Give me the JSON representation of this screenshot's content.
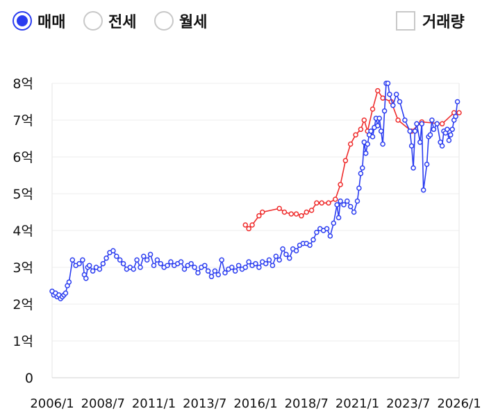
{
  "controls": {
    "radios": [
      {
        "label": "매매",
        "selected": true
      },
      {
        "label": "전세",
        "selected": false
      },
      {
        "label": "월세",
        "selected": false
      }
    ],
    "volume_checkbox": {
      "label": "거래량",
      "checked": false
    }
  },
  "chart_data": {
    "type": "line",
    "title": "",
    "xlabel": "",
    "ylabel": "",
    "ylim": [
      0,
      8
    ],
    "xlim": [
      "2006/1",
      "2026/1"
    ],
    "grid": true,
    "x_ticks": [
      "2006/1",
      "2008/7",
      "2011/1",
      "2013/7",
      "2016/1",
      "2018/7",
      "2021/1",
      "2023/7",
      "2026/1"
    ],
    "y_ticks": [
      {
        "value": 0,
        "label": "0"
      },
      {
        "value": 1,
        "label": "1억"
      },
      {
        "value": 2,
        "label": "2억"
      },
      {
        "value": 3,
        "label": "3억"
      },
      {
        "value": 4,
        "label": "4억"
      },
      {
        "value": 5,
        "label": "5억"
      },
      {
        "value": 6,
        "label": "6억"
      },
      {
        "value": 7,
        "label": "7억"
      },
      {
        "value": 8,
        "label": "8억"
      }
    ],
    "series": [
      {
        "color": "#ef2b2b",
        "points": [
          [
            "2015/7",
            4.15
          ],
          [
            "2015/9",
            4.05
          ],
          [
            "2015/11",
            4.15
          ],
          [
            "2016/3",
            4.4
          ],
          [
            "2016/5",
            4.5
          ],
          [
            "2017/3",
            4.6
          ],
          [
            "2017/6",
            4.5
          ],
          [
            "2017/10",
            4.45
          ],
          [
            "2018/1",
            4.45
          ],
          [
            "2018/4",
            4.4
          ],
          [
            "2018/7",
            4.5
          ],
          [
            "2018/10",
            4.55
          ],
          [
            "2019/1",
            4.75
          ],
          [
            "2019/4",
            4.75
          ],
          [
            "2019/8",
            4.75
          ],
          [
            "2019/12",
            4.85
          ],
          [
            "2020/3",
            5.25
          ],
          [
            "2020/6",
            5.9
          ],
          [
            "2020/9",
            6.35
          ],
          [
            "2020/12",
            6.6
          ],
          [
            "2021/3",
            6.75
          ],
          [
            "2021/5",
            7.0
          ],
          [
            "2021/7",
            6.7
          ],
          [
            "2021/10",
            7.3
          ],
          [
            "2022/1",
            7.8
          ],
          [
            "2022/4",
            7.6
          ],
          [
            "2022/9",
            7.5
          ],
          [
            "2023/1",
            7.0
          ],
          [
            "2023/9",
            6.7
          ],
          [
            "2024/3",
            6.95
          ],
          [
            "2025/3",
            6.9
          ],
          [
            "2025/10",
            7.2
          ],
          [
            "2026/1",
            7.2
          ]
        ]
      },
      {
        "color": "#2a3cf0",
        "points": [
          [
            "2006/1",
            2.35
          ],
          [
            "2006/2",
            2.25
          ],
          [
            "2006/3",
            2.3
          ],
          [
            "2006/4",
            2.2
          ],
          [
            "2006/5",
            2.25
          ],
          [
            "2006/6",
            2.15
          ],
          [
            "2006/7",
            2.2
          ],
          [
            "2006/8",
            2.25
          ],
          [
            "2006/9",
            2.3
          ],
          [
            "2006/10",
            2.5
          ],
          [
            "2006/11",
            2.6
          ],
          [
            "2007/1",
            3.2
          ],
          [
            "2007/3",
            3.05
          ],
          [
            "2007/5",
            3.1
          ],
          [
            "2007/7",
            3.2
          ],
          [
            "2007/8",
            2.8
          ],
          [
            "2007/9",
            2.7
          ],
          [
            "2007/10",
            3.0
          ],
          [
            "2007/11",
            3.05
          ],
          [
            "2008/1",
            2.9
          ],
          [
            "2008/3",
            3.0
          ],
          [
            "2008/5",
            2.95
          ],
          [
            "2008/7",
            3.1
          ],
          [
            "2008/9",
            3.25
          ],
          [
            "2008/11",
            3.4
          ],
          [
            "2009/1",
            3.45
          ],
          [
            "2009/3",
            3.3
          ],
          [
            "2009/5",
            3.2
          ],
          [
            "2009/7",
            3.1
          ],
          [
            "2009/9",
            2.95
          ],
          [
            "2009/11",
            3.0
          ],
          [
            "2010/1",
            2.95
          ],
          [
            "2010/3",
            3.2
          ],
          [
            "2010/5",
            3.0
          ],
          [
            "2010/7",
            3.3
          ],
          [
            "2010/9",
            3.2
          ],
          [
            "2010/11",
            3.35
          ],
          [
            "2011/1",
            3.05
          ],
          [
            "2011/3",
            3.2
          ],
          [
            "2011/5",
            3.1
          ],
          [
            "2011/7",
            3.0
          ],
          [
            "2011/9",
            3.05
          ],
          [
            "2011/11",
            3.15
          ],
          [
            "2012/1",
            3.05
          ],
          [
            "2012/3",
            3.1
          ],
          [
            "2012/5",
            3.15
          ],
          [
            "2012/7",
            2.95
          ],
          [
            "2012/9",
            3.05
          ],
          [
            "2012/11",
            3.1
          ],
          [
            "2013/1",
            3.0
          ],
          [
            "2013/3",
            2.85
          ],
          [
            "2013/5",
            3.0
          ],
          [
            "2013/7",
            3.05
          ],
          [
            "2013/9",
            2.9
          ],
          [
            "2013/11",
            2.75
          ],
          [
            "2014/1",
            2.9
          ],
          [
            "2014/3",
            2.8
          ],
          [
            "2014/5",
            3.2
          ],
          [
            "2014/7",
            2.85
          ],
          [
            "2014/9",
            2.95
          ],
          [
            "2014/11",
            3.0
          ],
          [
            "2015/1",
            2.9
          ],
          [
            "2015/3",
            3.05
          ],
          [
            "2015/5",
            2.95
          ],
          [
            "2015/7",
            3.0
          ],
          [
            "2015/9",
            3.15
          ],
          [
            "2015/11",
            3.05
          ],
          [
            "2016/1",
            3.1
          ],
          [
            "2016/3",
            3.0
          ],
          [
            "2016/5",
            3.15
          ],
          [
            "2016/7",
            3.1
          ],
          [
            "2016/9",
            3.2
          ],
          [
            "2016/11",
            3.05
          ],
          [
            "2017/1",
            3.3
          ],
          [
            "2017/3",
            3.2
          ],
          [
            "2017/5",
            3.5
          ],
          [
            "2017/7",
            3.35
          ],
          [
            "2017/9",
            3.25
          ],
          [
            "2017/11",
            3.5
          ],
          [
            "2018/1",
            3.45
          ],
          [
            "2018/3",
            3.6
          ],
          [
            "2018/5",
            3.65
          ],
          [
            "2018/7",
            3.65
          ],
          [
            "2018/9",
            3.6
          ],
          [
            "2018/11",
            3.75
          ],
          [
            "2019/1",
            3.95
          ],
          [
            "2019/3",
            4.05
          ],
          [
            "2019/5",
            4.0
          ],
          [
            "2019/7",
            4.05
          ],
          [
            "2019/9",
            3.85
          ],
          [
            "2019/11",
            4.2
          ],
          [
            "2020/1",
            4.7
          ],
          [
            "2020/2",
            4.35
          ],
          [
            "2020/3",
            4.8
          ],
          [
            "2020/5",
            4.7
          ],
          [
            "2020/7",
            4.8
          ],
          [
            "2020/9",
            4.65
          ],
          [
            "2020/11",
            4.5
          ],
          [
            "2021/1",
            4.8
          ],
          [
            "2021/2",
            5.15
          ],
          [
            "2021/3",
            5.55
          ],
          [
            "2021/4",
            5.7
          ],
          [
            "2021/5",
            6.4
          ],
          [
            "2021/6",
            6.1
          ],
          [
            "2021/7",
            6.35
          ],
          [
            "2021/8",
            6.6
          ],
          [
            "2021/9",
            6.7
          ],
          [
            "2021/10",
            6.55
          ],
          [
            "2021/11",
            6.8
          ],
          [
            "2021/12",
            7.05
          ],
          [
            "2022/1",
            6.85
          ],
          [
            "2022/2",
            7.05
          ],
          [
            "2022/3",
            6.7
          ],
          [
            "2022/4",
            6.35
          ],
          [
            "2022/5",
            7.25
          ],
          [
            "2022/6",
            8.0
          ],
          [
            "2022/7",
            8.0
          ],
          [
            "2022/8",
            7.7
          ],
          [
            "2022/10",
            7.4
          ],
          [
            "2022/12",
            7.7
          ],
          [
            "2023/2",
            7.5
          ],
          [
            "2023/5",
            7.0
          ],
          [
            "2023/8",
            6.7
          ],
          [
            "2023/9",
            6.3
          ],
          [
            "2023/10",
            5.7
          ],
          [
            "2023/11",
            6.7
          ],
          [
            "2023/12",
            6.9
          ],
          [
            "2024/2",
            6.4
          ],
          [
            "2024/3",
            6.9
          ],
          [
            "2024/4",
            5.1
          ],
          [
            "2024/6",
            5.8
          ],
          [
            "2024/7",
            6.55
          ],
          [
            "2024/8",
            6.6
          ],
          [
            "2024/9",
            7.0
          ],
          [
            "2024/10",
            6.75
          ],
          [
            "2024/12",
            6.9
          ],
          [
            "2025/2",
            6.4
          ],
          [
            "2025/3",
            6.3
          ],
          [
            "2025/4",
            6.7
          ],
          [
            "2025/5",
            6.65
          ],
          [
            "2025/6",
            6.75
          ],
          [
            "2025/7",
            6.45
          ],
          [
            "2025/8",
            6.6
          ],
          [
            "2025/9",
            6.75
          ],
          [
            "2025/10",
            7.0
          ],
          [
            "2025/11",
            7.1
          ],
          [
            "2025/12",
            7.5
          ]
        ]
      }
    ]
  }
}
